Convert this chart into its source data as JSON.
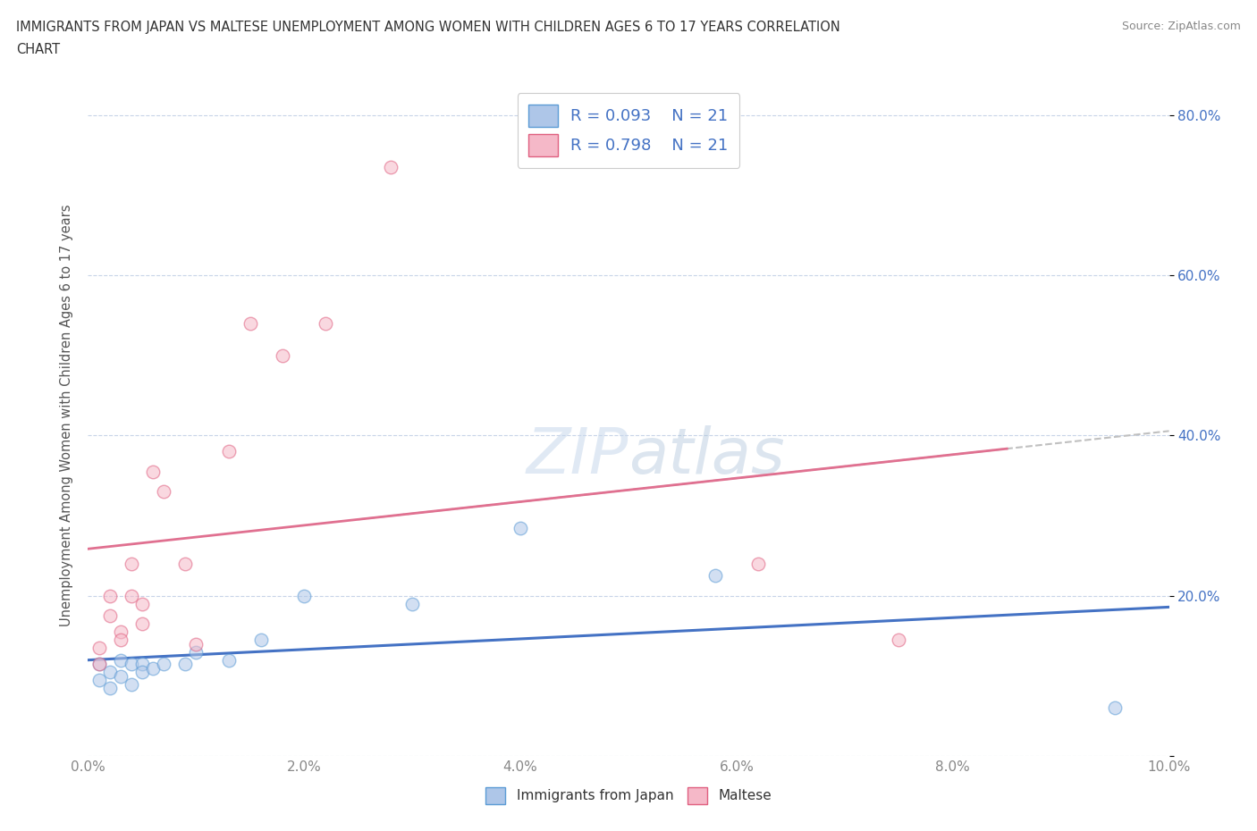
{
  "title_line1": "IMMIGRANTS FROM JAPAN VS MALTESE UNEMPLOYMENT AMONG WOMEN WITH CHILDREN AGES 6 TO 17 YEARS CORRELATION",
  "title_line2": "CHART",
  "source": "Source: ZipAtlas.com",
  "ylabel": "Unemployment Among Women with Children Ages 6 to 17 years",
  "xmin": 0.0,
  "xmax": 0.1,
  "ymin": 0.0,
  "ymax": 0.85,
  "x_ticks": [
    0.0,
    0.02,
    0.04,
    0.06,
    0.08,
    0.1
  ],
  "x_tick_labels": [
    "0.0%",
    "2.0%",
    "4.0%",
    "6.0%",
    "8.0%",
    "10.0%"
  ],
  "y_ticks": [
    0.0,
    0.2,
    0.4,
    0.6,
    0.8
  ],
  "y_tick_labels_right": [
    "",
    "20.0%",
    "40.0%",
    "60.0%",
    "80.0%"
  ],
  "legend_labels": [
    "Immigrants from Japan",
    "Maltese"
  ],
  "R_japan": 0.093,
  "N_japan": 21,
  "R_maltese": 0.798,
  "N_maltese": 21,
  "color_japan": "#aec6e8",
  "color_maltese": "#f5b8c8",
  "edge_color_japan": "#5b9bd5",
  "edge_color_maltese": "#e06080",
  "trendline_color_japan": "#4472c4",
  "trendline_color_maltese": "#e07090",
  "japan_x": [
    0.001,
    0.001,
    0.002,
    0.002,
    0.003,
    0.003,
    0.004,
    0.004,
    0.005,
    0.005,
    0.006,
    0.007,
    0.009,
    0.01,
    0.013,
    0.016,
    0.02,
    0.03,
    0.04,
    0.058,
    0.095
  ],
  "japan_y": [
    0.115,
    0.095,
    0.105,
    0.085,
    0.12,
    0.1,
    0.115,
    0.09,
    0.115,
    0.105,
    0.11,
    0.115,
    0.115,
    0.13,
    0.12,
    0.145,
    0.2,
    0.19,
    0.285,
    0.225,
    0.06
  ],
  "maltese_x": [
    0.001,
    0.001,
    0.002,
    0.002,
    0.003,
    0.003,
    0.004,
    0.004,
    0.005,
    0.005,
    0.006,
    0.007,
    0.009,
    0.01,
    0.013,
    0.015,
    0.018,
    0.022,
    0.028,
    0.062,
    0.075
  ],
  "maltese_y": [
    0.135,
    0.115,
    0.2,
    0.175,
    0.155,
    0.145,
    0.24,
    0.2,
    0.165,
    0.19,
    0.355,
    0.33,
    0.24,
    0.14,
    0.38,
    0.54,
    0.5,
    0.54,
    0.735,
    0.24,
    0.145
  ],
  "watermark_zip": "ZIP",
  "watermark_atlas": "atlas",
  "background_color": "#ffffff",
  "grid_color": "#c8d4e8",
  "marker_size": 110,
  "marker_alpha": 0.55,
  "legend_text_color": "#4472c4",
  "axis_label_color": "#555555",
  "tick_color": "#888888"
}
